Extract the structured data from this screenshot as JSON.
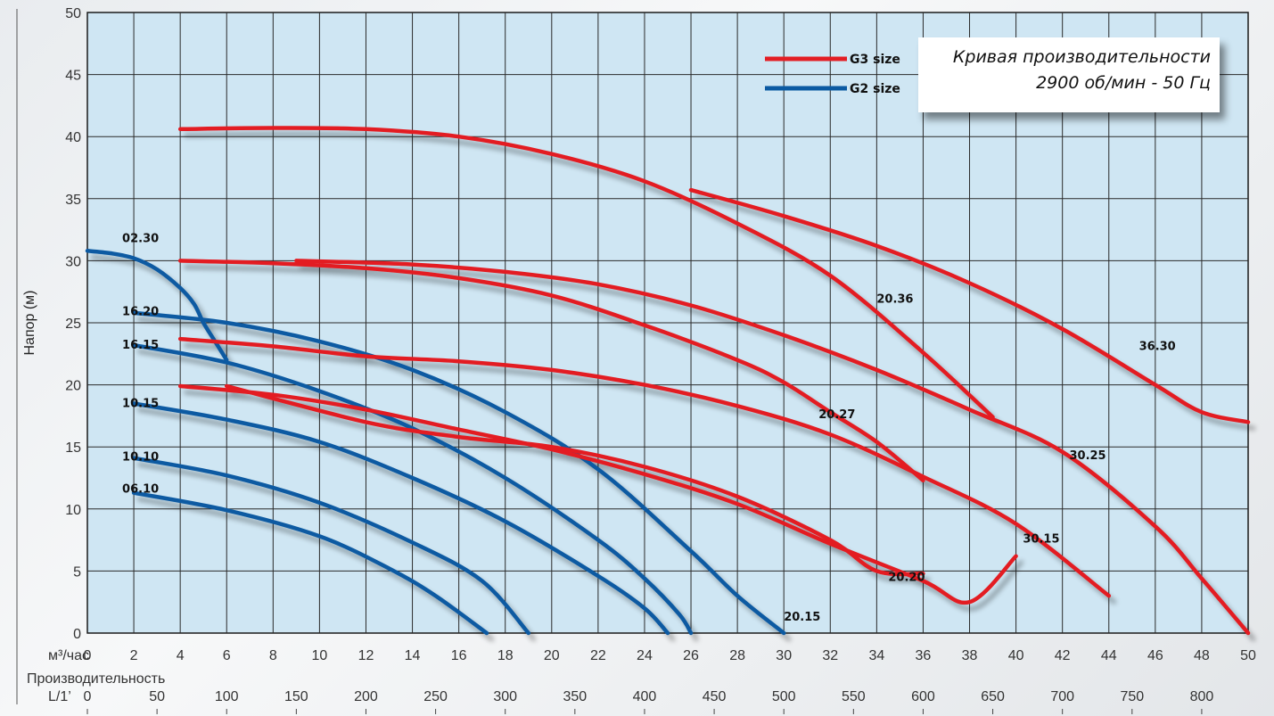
{
  "info_box": {
    "line1": "Кривая производительности",
    "line2": "2900 об/мин - 50 Гц"
  },
  "chart_data": {
    "type": "line",
    "ylabel": "Напор (м)",
    "xlabel": "Производительность",
    "x_unit_label": "м³/час",
    "x2_unit_label": "L/1’",
    "xlim": [
      0,
      50
    ],
    "ylim": [
      0,
      50
    ],
    "x_ticks": [
      0,
      2,
      4,
      6,
      8,
      10,
      12,
      14,
      16,
      18,
      20,
      22,
      24,
      26,
      28,
      30,
      32,
      34,
      36,
      38,
      40,
      42,
      44,
      46,
      48,
      50
    ],
    "y_ticks": [
      0,
      5,
      10,
      15,
      20,
      25,
      30,
      35,
      40,
      45,
      50
    ],
    "x2_ticks": [
      0,
      50,
      100,
      150,
      200,
      250,
      300,
      350,
      400,
      450,
      500,
      550,
      600,
      650,
      700,
      750,
      800
    ],
    "grid": true,
    "legend_position": "top-right",
    "legend": [
      {
        "name": "G3 size",
        "color": "#e31e24"
      },
      {
        "name": "G2 size",
        "color": "#0b5aa2"
      }
    ],
    "series": [
      {
        "name": "02.30",
        "group": "G2",
        "color": "#0b5aa2",
        "label_at": [
          1.5,
          31.5
        ],
        "points": [
          [
            0,
            30.8
          ],
          [
            1,
            30.6
          ],
          [
            2,
            30.2
          ],
          [
            3,
            29.3
          ],
          [
            4,
            27.8
          ],
          [
            4.6,
            26.5
          ],
          [
            5,
            25
          ],
          [
            5.5,
            23.5
          ],
          [
            6,
            22
          ]
        ]
      },
      {
        "name": "16.20",
        "group": "G2",
        "color": "#0b5aa2",
        "label_at": [
          1.5,
          25.6
        ],
        "points": [
          [
            2,
            25.8
          ],
          [
            6,
            25
          ],
          [
            10,
            23.5
          ],
          [
            14,
            21.2
          ],
          [
            18,
            17.8
          ],
          [
            22,
            13.2
          ],
          [
            26,
            6.6
          ],
          [
            28,
            3
          ],
          [
            30,
            0
          ]
        ]
      },
      {
        "name": "16.15",
        "group": "G2",
        "color": "#0b5aa2",
        "label_at": [
          1.5,
          22.9
        ],
        "points": [
          [
            2,
            23.2
          ],
          [
            6,
            21.8
          ],
          [
            10,
            19.5
          ],
          [
            14,
            16.5
          ],
          [
            18,
            12.5
          ],
          [
            22,
            7.5
          ],
          [
            24,
            4.4
          ],
          [
            25.5,
            1.5
          ],
          [
            26,
            0
          ]
        ]
      },
      {
        "name": "10.15",
        "group": "G2",
        "color": "#0b5aa2",
        "label_at": [
          1.5,
          18.2
        ],
        "points": [
          [
            2,
            18.5
          ],
          [
            6,
            17.2
          ],
          [
            10,
            15.4
          ],
          [
            14,
            12.5
          ],
          [
            18,
            9
          ],
          [
            22,
            4.6
          ],
          [
            24,
            2
          ],
          [
            25,
            0
          ]
        ]
      },
      {
        "name": "10.10",
        "group": "G2",
        "color": "#0b5aa2",
        "label_at": [
          1.5,
          13.9
        ],
        "points": [
          [
            2,
            14.1
          ],
          [
            6,
            12.7
          ],
          [
            10,
            10.5
          ],
          [
            14,
            7.3
          ],
          [
            17,
            4.2
          ],
          [
            19,
            0
          ]
        ]
      },
      {
        "name": "06.10",
        "group": "G2",
        "color": "#0b5aa2",
        "label_at": [
          1.5,
          11.3
        ],
        "points": [
          [
            2,
            11.3
          ],
          [
            6,
            9.9
          ],
          [
            10,
            7.8
          ],
          [
            13,
            5.2
          ],
          [
            15,
            3
          ],
          [
            17.2,
            0
          ]
        ]
      },
      {
        "name": "36.30",
        "group": "G3",
        "color": "#e31e24",
        "label_at": [
          45.3,
          22.8
        ],
        "points": [
          [
            26,
            35.7
          ],
          [
            30,
            33.6
          ],
          [
            34,
            31.2
          ],
          [
            38,
            28.2
          ],
          [
            42,
            24.5
          ],
          [
            46,
            20
          ],
          [
            48,
            17.8
          ],
          [
            50,
            17
          ]
        ]
      },
      {
        "name": "20.36",
        "group": "G3",
        "color": "#e31e24",
        "label_at": [
          34,
          26.6
        ],
        "points": [
          [
            4,
            40.6
          ],
          [
            8,
            40.7
          ],
          [
            12,
            40.6
          ],
          [
            16,
            40
          ],
          [
            20,
            38.6
          ],
          [
            24,
            36.4
          ],
          [
            28,
            33
          ],
          [
            32,
            28.8
          ],
          [
            36,
            22.6
          ],
          [
            39,
            17.4
          ]
        ]
      },
      {
        "name": "30.25",
        "group": "G3",
        "color": "#e31e24",
        "label_at": [
          42.3,
          14
        ],
        "points": [
          [
            9,
            30
          ],
          [
            14,
            29.7
          ],
          [
            18,
            29.1
          ],
          [
            22,
            28.1
          ],
          [
            26,
            26.4
          ],
          [
            30,
            24
          ],
          [
            34,
            21.2
          ],
          [
            38,
            18
          ],
          [
            42,
            14.6
          ],
          [
            46,
            8.6
          ],
          [
            48,
            4.4
          ],
          [
            50,
            0
          ]
        ]
      },
      {
        "name": "20.27",
        "group": "G3",
        "color": "#e31e24",
        "label_at": [
          31.5,
          17.3
        ],
        "points": [
          [
            4,
            30
          ],
          [
            8,
            29.8
          ],
          [
            12,
            29.4
          ],
          [
            16,
            28.6
          ],
          [
            20,
            27.2
          ],
          [
            24,
            24.8
          ],
          [
            28,
            22
          ],
          [
            30,
            20.2
          ],
          [
            32,
            17.8
          ],
          [
            34,
            15.4
          ],
          [
            36,
            12.3
          ]
        ]
      },
      {
        "name": "30.15",
        "group": "G3",
        "color": "#e31e24",
        "label_at": [
          40.3,
          7.3
        ],
        "points": [
          [
            4,
            23.7
          ],
          [
            8,
            23.1
          ],
          [
            12,
            22.3
          ],
          [
            16,
            21.9
          ],
          [
            20,
            21.2
          ],
          [
            24,
            20
          ],
          [
            28,
            18.3
          ],
          [
            32,
            16
          ],
          [
            36,
            12.6
          ],
          [
            40,
            8.8
          ],
          [
            44,
            3
          ]
        ]
      },
      {
        "name": "20.20",
        "group": "G3",
        "color": "#e31e24",
        "label_at": [
          34.5,
          4.2
        ],
        "points": [
          [
            4,
            19.9
          ],
          [
            8,
            19.2
          ],
          [
            12,
            18
          ],
          [
            16,
            16.4
          ],
          [
            20,
            14.8
          ],
          [
            24,
            12.8
          ],
          [
            28,
            10.4
          ],
          [
            32,
            7.2
          ],
          [
            36,
            4.2
          ],
          [
            38,
            2.5
          ],
          [
            40,
            6.2
          ]
        ]
      },
      {
        "name": "20.15",
        "group": "G3",
        "color": "#e31e24",
        "label_at": [
          30,
          1
        ],
        "points": [
          [
            6,
            19.9
          ],
          [
            12,
            17
          ],
          [
            16,
            15.8
          ],
          [
            20,
            15
          ],
          [
            24,
            13.4
          ],
          [
            28,
            11
          ],
          [
            32,
            7.5
          ],
          [
            34,
            5
          ],
          [
            36,
            4.8
          ]
        ]
      }
    ]
  }
}
